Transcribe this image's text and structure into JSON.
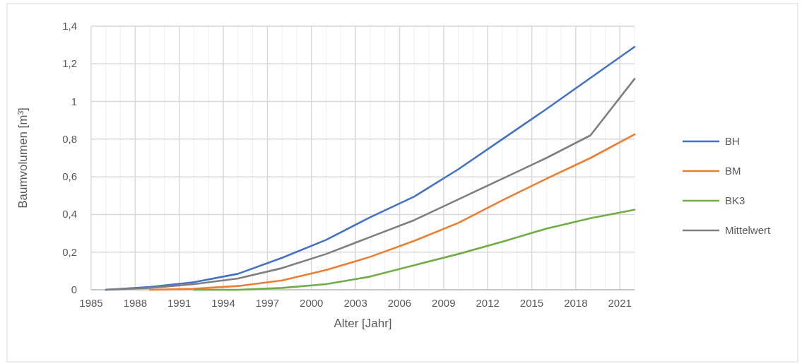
{
  "chart_data": {
    "type": "line",
    "xlabel": "Alter [Jahr]",
    "ylabel": "Baumvolumen [m³]",
    "xlim": [
      1985,
      2022
    ],
    "xticks": [
      1985,
      {
        "value": 1986,
        "label": null
      },
      {
        "value": 1987,
        "label": null
      },
      1988,
      {
        "value": 1989,
        "label": null
      },
      {
        "value": 1990,
        "label": null
      },
      1991,
      {
        "value": 1992,
        "label": null
      },
      {
        "value": 1993,
        "label": null
      },
      1994,
      {
        "value": 1995,
        "label": null
      },
      {
        "value": 1996,
        "label": null
      },
      1997,
      {
        "value": 1998,
        "label": null
      },
      {
        "value": 1999,
        "label": null
      },
      2000,
      {
        "value": 2001,
        "label": null
      },
      {
        "value": 2002,
        "label": null
      },
      2003,
      {
        "value": 2004,
        "label": null
      },
      {
        "value": 2005,
        "label": null
      },
      2006,
      {
        "value": 2007,
        "label": null
      },
      {
        "value": 2008,
        "label": null
      },
      2009,
      {
        "value": 2010,
        "label": null
      },
      {
        "value": 2011,
        "label": null
      },
      2012,
      {
        "value": 2013,
        "label": null
      },
      {
        "value": 2014,
        "label": null
      },
      2015,
      {
        "value": 2016,
        "label": null
      },
      {
        "value": 2017,
        "label": null
      },
      2018,
      {
        "value": 2019,
        "label": null
      },
      {
        "value": 2020,
        "label": null
      },
      2021,
      {
        "value": 2022,
        "label": null
      }
    ],
    "ylim": [
      0,
      1.4
    ],
    "yticks": [
      {
        "value": 0,
        "label": "0"
      },
      {
        "value": 0.2,
        "label": "0,2"
      },
      {
        "value": 0.4,
        "label": "0,4"
      },
      {
        "value": 0.6,
        "label": "0,6"
      },
      {
        "value": 0.8,
        "label": "0,8"
      },
      {
        "value": 1,
        "label": "1"
      },
      {
        "value": 1.2,
        "label": "1,2"
      },
      {
        "value": 1.4,
        "label": "1,4"
      }
    ],
    "grid": true,
    "legend": "right",
    "marker": "none",
    "line_style": "solid",
    "series": [
      {
        "name": "BH",
        "color": "#4472c4",
        "x": [
          1986,
          1989,
          1992,
          1995,
          1998,
          2001,
          2004,
          2007,
          2010,
          2013,
          2016,
          2019,
          2022
        ],
        "values": [
          0,
          0.015,
          0.04,
          0.085,
          0.17,
          0.265,
          0.385,
          0.495,
          0.64,
          0.8,
          0.96,
          1.125,
          1.29
        ]
      },
      {
        "name": "BM",
        "color": "#ed7d31",
        "x": [
          1989,
          1992,
          1995,
          1998,
          2001,
          2004,
          2007,
          2010,
          2013,
          2016,
          2019,
          2022
        ],
        "values": [
          0,
          0.005,
          0.02,
          0.05,
          0.105,
          0.175,
          0.26,
          0.355,
          0.475,
          0.59,
          0.7,
          0.825
        ]
      },
      {
        "name": "BK3",
        "color": "#70ad47",
        "x": [
          1992,
          1995,
          1998,
          2001,
          2004,
          2007,
          2010,
          2013,
          2016,
          2019,
          2022
        ],
        "values": [
          0,
          0,
          0.01,
          0.03,
          0.07,
          0.13,
          0.19,
          0.255,
          0.325,
          0.38,
          0.425
        ]
      },
      {
        "name": "Mittelwert",
        "color": "#7f7f7f",
        "x": [
          1986,
          1989,
          1992,
          1995,
          1998,
          2001,
          2004,
          2007,
          2010,
          2013,
          2016,
          2019,
          2022
        ],
        "values": [
          0,
          0.01,
          0.03,
          0.06,
          0.115,
          0.19,
          0.28,
          0.37,
          0.48,
          0.59,
          0.7,
          0.82,
          1.12
        ]
      }
    ]
  }
}
